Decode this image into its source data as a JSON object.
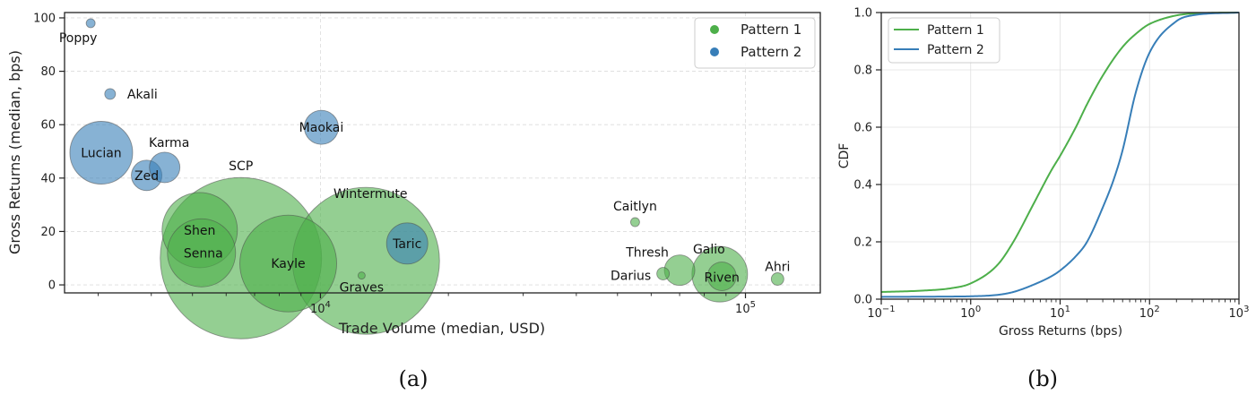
{
  "colors": {
    "pattern1": "#4daf4a",
    "pattern2": "#377eb8"
  },
  "captions": [
    "(a)",
    "(b)"
  ],
  "chart_data": [
    {
      "type": "scatter",
      "xlabel": "Trade Volume (median, USD)",
      "ylabel": "Gross Returns (median, bps)",
      "xscale": "log",
      "xlim": [
        2500,
        150000
      ],
      "ylim": [
        -3,
        102
      ],
      "xticks": [
        {
          "value": 10000,
          "base": "10",
          "exp": "4"
        },
        {
          "value": 100000,
          "base": "10",
          "exp": "5"
        }
      ],
      "yticks": [
        0,
        20,
        40,
        60,
        80,
        100
      ],
      "grid": true,
      "legend_position": "top-right",
      "series": [
        {
          "name": "Pattern 1",
          "color_key": "pattern1",
          "points": [
            {
              "label": "SCP",
              "x": 6500,
              "y": 10,
              "size": 90
            },
            {
              "label": "Wintermute",
              "x": 12800,
              "y": 9,
              "size": 82
            },
            {
              "label": "Kayle",
              "x": 8400,
              "y": 8,
              "size": 54
            },
            {
              "label": "Shen",
              "x": 5200,
              "y": 20.5,
              "size": 42
            },
            {
              "label": "Senna",
              "x": 5250,
              "y": 12,
              "size": 38
            },
            {
              "label": "Graves",
              "x": 12500,
              "y": 3.5,
              "size": 4
            },
            {
              "label": "Caitlyn",
              "x": 55000,
              "y": 23.5,
              "size": 5
            },
            {
              "label": "Thresh",
              "x": 70000,
              "y": 5.5,
              "size": 17
            },
            {
              "label": "Darius",
              "x": 64000,
              "y": 4.2,
              "size": 7
            },
            {
              "label": "Galio",
              "x": 87000,
              "y": 4,
              "size": 31
            },
            {
              "label": "Riven",
              "x": 88000,
              "y": 3.2,
              "size": 16
            },
            {
              "label": "Ahri",
              "x": 119000,
              "y": 2.2,
              "size": 7
            }
          ]
        },
        {
          "name": "Pattern 2",
          "color_key": "pattern2",
          "points": [
            {
              "label": "Poppy",
              "x": 2880,
              "y": 98,
              "size": 5
            },
            {
              "label": "Akali",
              "x": 3200,
              "y": 71.5,
              "size": 6
            },
            {
              "label": "Lucian",
              "x": 3050,
              "y": 49.5,
              "size": 35
            },
            {
              "label": "Zed",
              "x": 3900,
              "y": 41,
              "size": 17
            },
            {
              "label": "Karma",
              "x": 4300,
              "y": 44,
              "size": 17
            },
            {
              "label": "Maokai",
              "x": 10050,
              "y": 59,
              "size": 19
            },
            {
              "label": "Taric",
              "x": 16000,
              "y": 15.5,
              "size": 23
            }
          ]
        }
      ]
    },
    {
      "type": "line",
      "xlabel": "Gross Returns (bps)",
      "ylabel": "CDF",
      "xscale": "log",
      "xlim": [
        0.1,
        1000
      ],
      "ylim": [
        0,
        1
      ],
      "xticks": [
        {
          "value": 0.1,
          "base": "10",
          "exp": "−1"
        },
        {
          "value": 1,
          "base": "10",
          "exp": "0"
        },
        {
          "value": 10,
          "base": "10",
          "exp": "1"
        },
        {
          "value": 100,
          "base": "10",
          "exp": "2"
        },
        {
          "value": 1000,
          "base": "10",
          "exp": "3"
        }
      ],
      "yticks": [
        "0.0",
        "0.2",
        "0.4",
        "0.6",
        "0.8",
        "1.0"
      ],
      "grid": true,
      "legend_position": "top-left",
      "series": [
        {
          "name": "Pattern 1",
          "color_key": "pattern1",
          "x": [
            0.1,
            0.3,
            0.6,
            1,
            2,
            3,
            5,
            8,
            10,
            15,
            20,
            30,
            50,
            80,
            100,
            200,
            400,
            1000
          ],
          "y": [
            0.025,
            0.03,
            0.038,
            0.055,
            0.12,
            0.2,
            0.33,
            0.45,
            0.5,
            0.6,
            0.68,
            0.78,
            0.88,
            0.94,
            0.96,
            0.99,
            0.998,
            1.0
          ]
        },
        {
          "name": "Pattern 2",
          "color_key": "pattern2",
          "x": [
            0.1,
            0.5,
            1,
            2,
            3,
            5,
            8,
            10,
            15,
            20,
            30,
            40,
            50,
            70,
            100,
            200,
            300,
            1000
          ],
          "y": [
            0.008,
            0.009,
            0.01,
            0.015,
            0.025,
            0.05,
            0.08,
            0.1,
            0.15,
            0.2,
            0.32,
            0.42,
            0.52,
            0.72,
            0.86,
            0.97,
            0.99,
            1.0
          ]
        }
      ]
    }
  ]
}
